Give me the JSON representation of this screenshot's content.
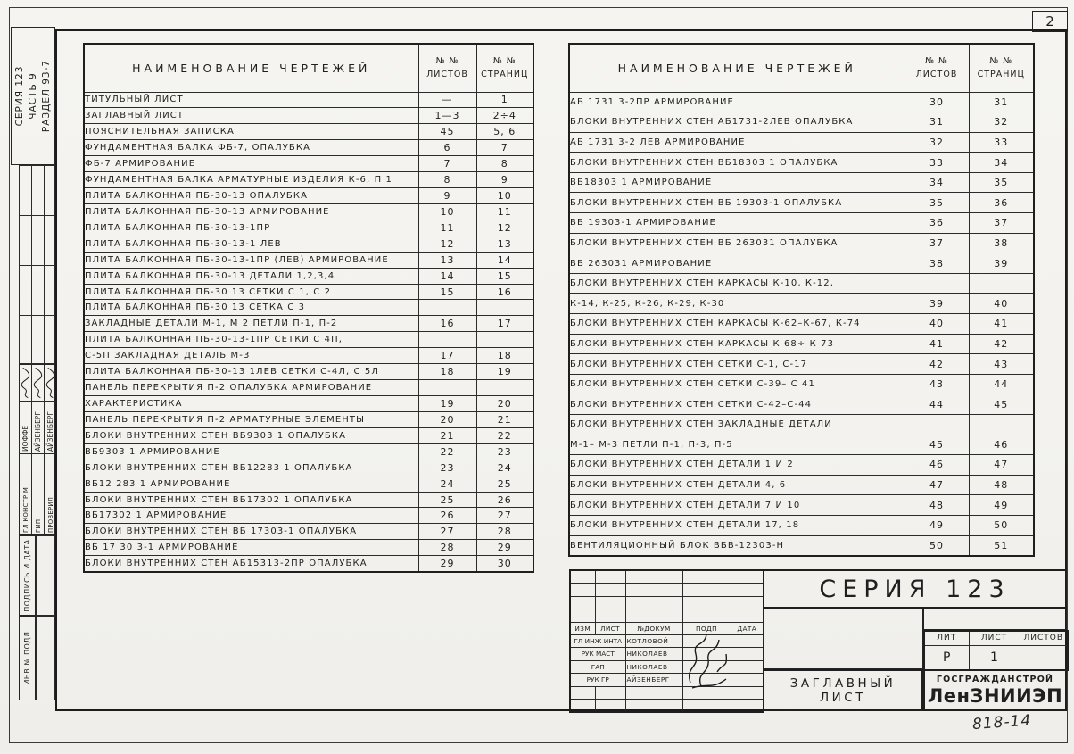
{
  "page": {
    "sheet_number": "2",
    "doc_code": "818-14"
  },
  "sidebar": {
    "top_label_lines": [
      "СЕРИЯ 123",
      "ЧАСТЬ 9",
      "РАЗДЕЛ 93-7"
    ],
    "stamp_rows": [
      {
        "role": "ГЛ КОНСТР М",
        "name": "ИОФФЕ"
      },
      {
        "role": "ГИП",
        "name": "АЙЗЕНБЕРГ"
      },
      {
        "role": "ПРОВЕРИЛ",
        "name": "АЙЗЕНБЕРГ"
      }
    ],
    "sign_date_label": "ПОДПИСЬ И ДАТА",
    "inventory_label": "ИНВ № ПОДЛ"
  },
  "table_headers": {
    "name": "НАИМЕНОВАНИЕ ЧЕРТЕЖЕЙ",
    "sheets_line1": "№ №",
    "sheets_line2": "ЛИСТОВ",
    "pages_line1": "№ №",
    "pages_line2": "СТРАНИЦ"
  },
  "left_table": {
    "rows": [
      [
        "ТИТУЛЬНЫЙ ЛИСТ",
        "—",
        "1"
      ],
      [
        "ЗАГЛАВНЫЙ ЛИСТ",
        "1—3",
        "2÷4"
      ],
      [
        "ПОЯСНИТЕЛЬНАЯ ЗАПИСКА",
        "45",
        "5, 6"
      ],
      [
        "ФУНДАМЕНТНАЯ БАЛКА ФБ-7, ОПАЛУБКА",
        "6",
        "7"
      ],
      [
        "ФБ-7  АРМИРОВАНИЕ",
        "7",
        "8"
      ],
      [
        "ФУНДАМЕНТНАЯ БАЛКА АРМАТУРНЫЕ ИЗДЕЛИЯ К-6, П 1",
        "8",
        "9"
      ],
      [
        "ПЛИТА БАЛКОННАЯ ПБ-30-13 ОПАЛУБКА",
        "9",
        "10"
      ],
      [
        "ПЛИТА БАЛКОННАЯ ПБ-30-13 АРМИРОВАНИЕ",
        "10",
        "11"
      ],
      [
        "ПЛИТА БАЛКОННАЯ ПБ-30-13-1ПР",
        "11",
        "12"
      ],
      [
        "ПЛИТА БАЛКОННАЯ ПБ-30-13-1 ЛЕВ",
        "12",
        "13"
      ],
      [
        "ПЛИТА БАЛКОННАЯ ПБ-30-13-1ПР (ЛЕВ) АРМИРОВАНИЕ",
        "13",
        "14"
      ],
      [
        "ПЛИТА БАЛКОННАЯ ПБ-30-13 ДЕТАЛИ 1,2,3,4",
        "14",
        "15"
      ],
      [
        "ПЛИТА БАЛКОННАЯ ПБ-30 13 СЕТКИ С 1, С 2",
        "15",
        "16"
      ],
      [
        "ПЛИТА БАЛКОННАЯ ПБ-30 13 СЕТКА С 3",
        "",
        ""
      ],
      [
        "ЗАКЛАДНЫЕ ДЕТАЛИ М-1, М 2 ПЕТЛИ П-1, П-2",
        "16",
        "17"
      ],
      [
        "ПЛИТА БАЛКОННАЯ ПБ-30-13-1ПР СЕТКИ С 4П,",
        "",
        ""
      ],
      [
        "С-5П ЗАКЛАДНАЯ ДЕТАЛЬ М-3",
        "17",
        "18"
      ],
      [
        "ПЛИТА БАЛКОННАЯ ПБ-30-13 1ЛЕВ СЕТКИ С-4Л, С 5Л",
        "18",
        "19"
      ],
      [
        "ПАНЕЛЬ ПЕРЕКРЫТИЯ П-2 ОПАЛУБКА АРМИРОВАНИЕ",
        "",
        ""
      ],
      [
        "ХАРАКТЕРИСТИКА",
        "19",
        "20"
      ],
      [
        "ПАНЕЛЬ ПЕРЕКРЫТИЯ П-2 АРМАТУРНЫЕ ЭЛЕМЕНТЫ",
        "20",
        "21"
      ],
      [
        "БЛОКИ ВНУТРЕННИХ СТЕН ВБ9303 1 ОПАЛУБКА",
        "21",
        "22"
      ],
      [
        "ВБ9303 1  АРМИРОВАНИЕ",
        "22",
        "23"
      ],
      [
        "БЛОКИ ВНУТРЕННИХ СТЕН ВБ12283 1 ОПАЛУБКА",
        "23",
        "24"
      ],
      [
        "ВБ12 283 1  АРМИРОВАНИЕ",
        "24",
        "25"
      ],
      [
        "БЛОКИ ВНУТРЕННИХ СТЕН ВБ17302 1 ОПАЛУБКА",
        "25",
        "26"
      ],
      [
        "ВБ17302 1  АРМИРОВАНИЕ",
        "26",
        "27"
      ],
      [
        "БЛОКИ ВНУТРЕННИХ СТЕН ВБ 17303-1 ОПАЛУБКА",
        "27",
        "28"
      ],
      [
        "ВБ 17 30 3-1  АРМИРОВАНИЕ",
        "28",
        "29"
      ],
      [
        "БЛОКИ ВНУТРЕННИХ СТЕН АБ15313-2ПР ОПАЛУБКА",
        "29",
        "30"
      ]
    ]
  },
  "right_table": {
    "rows": [
      [
        "АБ 1731 3-2ПР  АРМИРОВАНИЕ",
        "30",
        "31"
      ],
      [
        "БЛОКИ ВНУТРЕННИХ СТЕН АБ1731-2ЛЕВ ОПАЛУБКА",
        "31",
        "32"
      ],
      [
        "АБ 1731 3-2 ЛЕВ  АРМИРОВАНИЕ",
        "32",
        "33"
      ],
      [
        "БЛОКИ ВНУТРЕННИХ СТЕН ВБ18303 1 ОПАЛУБКА",
        "33",
        "34"
      ],
      [
        "ВБ18303 1  АРМИРОВАНИЕ",
        "34",
        "35"
      ],
      [
        "БЛОКИ ВНУТРЕННИХ СТЕН ВБ 19303-1 ОПАЛУБКА",
        "35",
        "36"
      ],
      [
        "ВБ 19303-1  АРМИРОВАНИЕ",
        "36",
        "37"
      ],
      [
        "БЛОКИ ВНУТРЕННИХ СТЕН ВБ 263031 ОПАЛУБКА",
        "37",
        "38"
      ],
      [
        "ВБ 263031  АРМИРОВАНИЕ",
        "38",
        "39"
      ],
      [
        "БЛОКИ ВНУТРЕННИХ СТЕН КАРКАСЫ К-10, К-12,",
        "",
        ""
      ],
      [
        "К-14, К-25, К-26, К-29, К-30",
        "39",
        "40"
      ],
      [
        "БЛОКИ ВНУТРЕННИХ СТЕН КАРКАСЫ К-62–К-67, К-74",
        "40",
        "41"
      ],
      [
        "БЛОКИ ВНУТРЕННИХ СТЕН КАРКАСЫ К 68÷ К 73",
        "41",
        "42"
      ],
      [
        "БЛОКИ ВНУТРЕННИХ СТЕН СЕТКИ С-1, С-17",
        "42",
        "43"
      ],
      [
        "БЛОКИ ВНУТРЕННИХ СТЕН СЕТКИ С-39– С 41",
        "43",
        "44"
      ],
      [
        "БЛОКИ ВНУТРЕННИХ СТЕН СЕТКИ С-42–С-44",
        "44",
        "45"
      ],
      [
        "БЛОКИ ВНУТРЕННИХ СТЕН ЗАКЛАДНЫЕ ДЕТАЛИ",
        "",
        ""
      ],
      [
        "М-1– М-3 ПЕТЛИ П-1, П-3, П-5",
        "45",
        "46"
      ],
      [
        "БЛОКИ ВНУТРЕННИХ СТЕН ДЕТАЛИ 1 И 2",
        "46",
        "47"
      ],
      [
        "БЛОКИ ВНУТРЕННИХ СТЕН ДЕТАЛИ 4, 6",
        "47",
        "48"
      ],
      [
        "БЛОКИ ВНУТРЕННИХ СТЕН ДЕТАЛИ 7 И 10",
        "48",
        "49"
      ],
      [
        "БЛОКИ ВНУТРЕННИХ СТЕН ДЕТАЛИ 17, 18",
        "49",
        "50"
      ],
      [
        "ВЕНТИЛЯЦИОННЫЙ БЛОК ВБВ-12303-Н",
        "50",
        "51"
      ]
    ]
  },
  "title_block": {
    "series_title": "СЕРИЯ 123",
    "revision_headers": [
      "ИЗМ",
      "ЛИСТ",
      "№ДОКУМ",
      "ПОДП",
      "ДАТА"
    ],
    "approval_rows": [
      {
        "role": "ГЛ ИНЖ ИНТА",
        "name": "КОТЛОВОЙ"
      },
      {
        "role": "РУК МАСТ",
        "name": "НИКОЛАЕВ"
      },
      {
        "role": "ГАП",
        "name": "НИКОЛАЕВ"
      },
      {
        "role": "РУК ГР",
        "name": "АЙЗЕНБЕРГ"
      }
    ],
    "lit_header": "ЛИТ",
    "sheet_header": "ЛИСТ",
    "sheets_header": "ЛИСТОВ",
    "lit_value": "Р",
    "sheet_value": "1",
    "sheets_value": "",
    "sheet_title": "ЗАГЛАВНЫЙ ЛИСТ",
    "org_name": "ГОСГРАЖДАНСТРОЙ",
    "org_abbr": "ЛенЗНИИЭП"
  },
  "colors": {
    "ink": "#1f1f1f",
    "paper": "#f4f3ef"
  }
}
